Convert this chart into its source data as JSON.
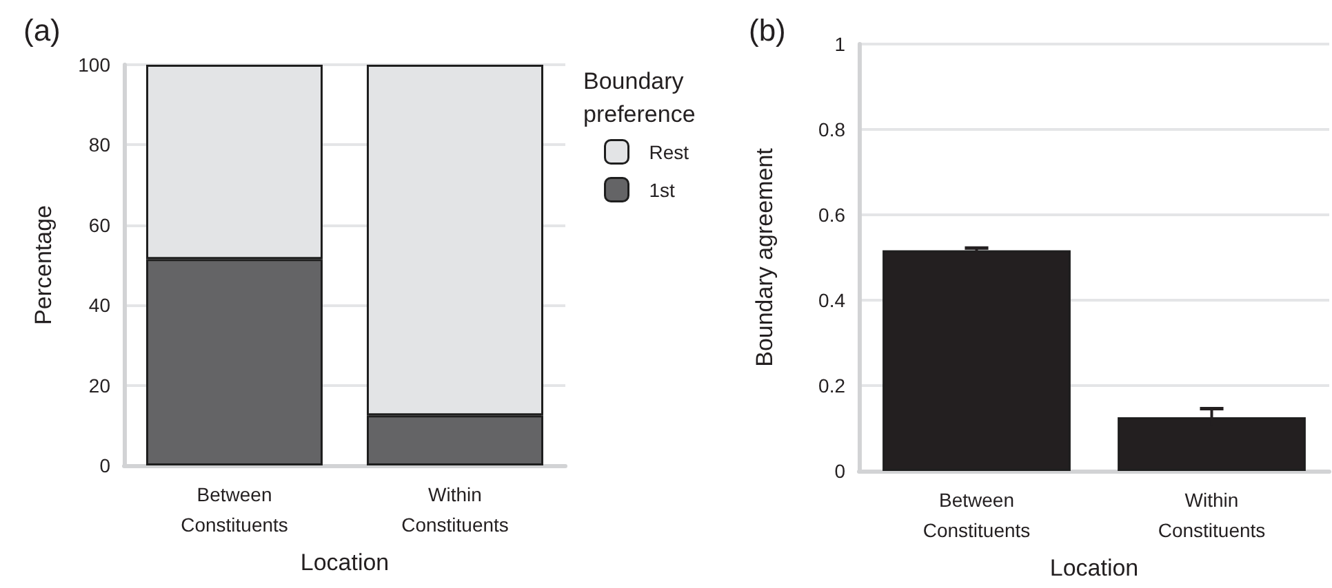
{
  "chart_data": [
    {
      "type": "bar",
      "title": "(a)",
      "xlabel": "Location",
      "ylabel": "Percentage",
      "legend_title": "Boundary\npreference",
      "categories": [
        "Between\nConstituents",
        "Within\nConstituents"
      ],
      "stacked": true,
      "series": [
        {
          "name": "1st",
          "color": "#646466",
          "values": [
            51.5,
            12.5
          ]
        },
        {
          "name": "Rest",
          "color": "#e3e4e6",
          "values": [
            48.5,
            87.5
          ]
        }
      ],
      "ylim": [
        0,
        100
      ],
      "yticks": [
        0,
        20,
        40,
        60,
        80,
        100
      ],
      "grid": "y",
      "legend": "top right"
    },
    {
      "type": "bar",
      "title": "(b)",
      "xlabel": "Location",
      "ylabel": "Boundary agreement",
      "categories": [
        "Between\nConstituents",
        "Within\nConstituents"
      ],
      "values": [
        0.517,
        0.126
      ],
      "errors": [
        0.005,
        0.02
      ],
      "color": "#231f20",
      "ylim": [
        0,
        1
      ],
      "yticks": [
        0,
        0.2,
        0.4,
        0.6,
        0.8,
        1
      ],
      "grid": "y"
    }
  ]
}
